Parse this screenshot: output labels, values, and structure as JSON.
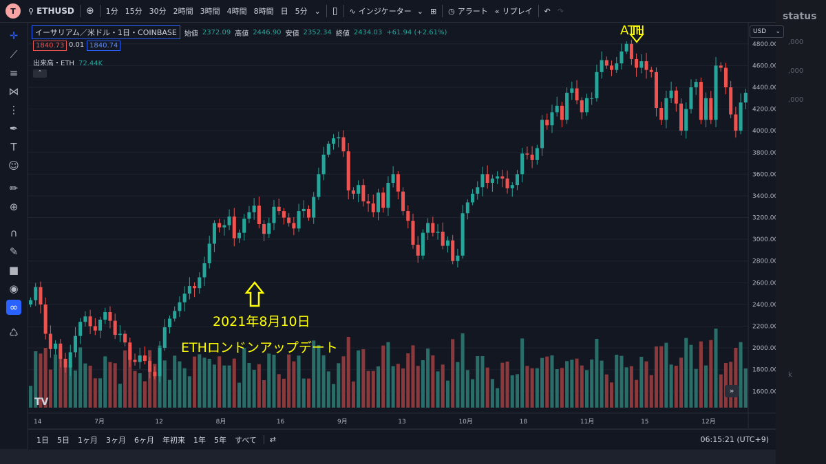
{
  "toolbar": {
    "logo_glyph": "T",
    "symbol": "ETHUSD",
    "intervals": [
      "1分",
      "15分",
      "30分",
      "2時間",
      "3時間",
      "4時間",
      "8時間",
      "日",
      "5分"
    ],
    "indicators": "インジケーター",
    "alert": "アラート",
    "replay": "リプレイ"
  },
  "legend": {
    "name": "イーサリアム／米ドル・1日・COINBASE",
    "open_label": "始値",
    "open": "2372.09",
    "high_label": "高値",
    "high": "2446.90",
    "low_label": "安値",
    "low": "2352.34",
    "close_label": "終値",
    "close": "2434.03",
    "change": "+61.94 (+2.61%)",
    "bid": "1840.73",
    "spread": "0.01",
    "ask": "1840.74",
    "volume_label": "出来高・ETH",
    "volume": "72.44K"
  },
  "currency": "USD",
  "right_panel": {
    "title": "status",
    "ghost_values": [
      ",000",
      ",000",
      ",000",
      "k"
    ]
  },
  "annotations": {
    "ath": "ATH",
    "date": "2021年8月10日",
    "event": "ETHロンドンアップデート",
    "annotation_color": "#ffff00"
  },
  "bottom": {
    "ranges": [
      "1日",
      "5日",
      "1ヶ月",
      "3ヶ月",
      "6ヶ月",
      "年初来",
      "1年",
      "5年",
      "すべて"
    ],
    "clock": "06:15:21 (UTC+9)"
  },
  "colors": {
    "up": "#26a69a",
    "down": "#ef5350",
    "up_vol": "#2a6e6a",
    "down_vol": "#8a3a3c",
    "accent": "#2962ff"
  },
  "chart_data": {
    "type": "candlestick",
    "y_ticks": [
      1600,
      1800,
      2000,
      2200,
      2400,
      2600,
      2800,
      3000,
      3200,
      3400,
      3600,
      3800,
      4000,
      4200,
      4400,
      4600,
      4800
    ],
    "ylim": [
      1450,
      4900
    ],
    "x_labels": [
      "14",
      "7月",
      "12",
      "8月",
      "16",
      "9月",
      "13",
      "10月",
      "18",
      "11月",
      "15",
      "12月"
    ],
    "closes": [
      2440,
      2560,
      2400,
      2130,
      1990,
      2040,
      1900,
      1820,
      1960,
      2110,
      2240,
      2290,
      2200,
      2160,
      2260,
      2330,
      2250,
      2120,
      2130,
      2050,
      1890,
      1870,
      1930,
      1880,
      1780,
      1740,
      2000,
      2190,
      2270,
      2340,
      2420,
      2500,
      2570,
      2550,
      2650,
      2780,
      2960,
      3150,
      3110,
      3130,
      3210,
      3010,
      3060,
      3190,
      3250,
      3310,
      3140,
      3050,
      3150,
      3300,
      3260,
      3200,
      3150,
      3100,
      3260,
      3280,
      3200,
      3390,
      3600,
      3780,
      3880,
      3930,
      3940,
      3810,
      3450,
      3420,
      3500,
      3350,
      3330,
      3250,
      3430,
      3290,
      3520,
      3600,
      3440,
      3260,
      3170,
      2950,
      2850,
      3060,
      3150,
      3060,
      3070,
      2940,
      2990,
      2800,
      2850,
      3240,
      3340,
      3420,
      3480,
      3600,
      3520,
      3560,
      3580,
      3560,
      3470,
      3500,
      3600,
      3790,
      3780,
      3730,
      3840,
      4100,
      4050,
      4170,
      4230,
      4100,
      4350,
      4390,
      4280,
      4170,
      4300,
      4300,
      4540,
      4650,
      4600,
      4560,
      4620,
      4730,
      4800,
      4660,
      4580,
      4640,
      4560,
      4540,
      4210,
      4100,
      4300,
      4370,
      4250,
      4000,
      4200,
      4400,
      4450,
      4100,
      4300,
      4100,
      4600,
      4580,
      4400,
      4150,
      4000,
      4260,
      4350
    ]
  }
}
